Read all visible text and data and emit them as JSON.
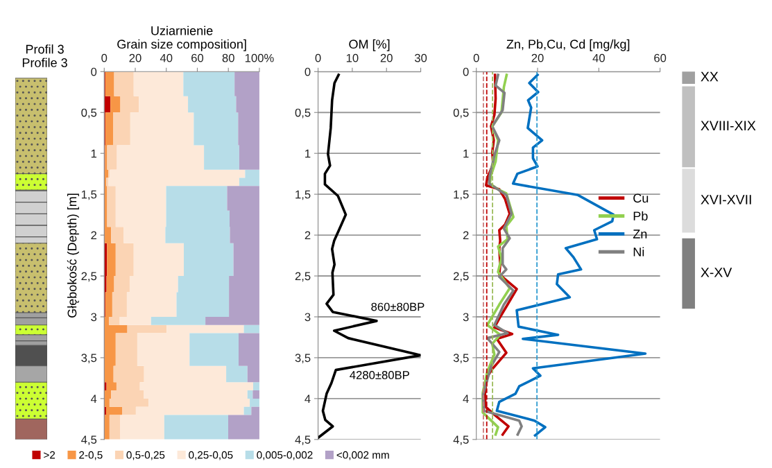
{
  "chart_data": [
    {
      "type": "area",
      "orientation": "horizontal",
      "stacked": true,
      "title": "Uziarnienie\nGrain size composition]",
      "ylabel": "Głębokość (Depth) [m]",
      "annotations": [
        "Profil 3\nProfile 3"
      ],
      "x": [
        0,
        0.3,
        0.3,
        0.5,
        0.5,
        0.9,
        0.9,
        1.2,
        1.2,
        1.3,
        1.3,
        1.4,
        1.4,
        1.7,
        1.7,
        1.9,
        1.9,
        2.1,
        2.1,
        2.5,
        2.5,
        2.7,
        2.7,
        3.0,
        3.0,
        3.1,
        3.1,
        3.2,
        3.2,
        3.6,
        3.6,
        3.8,
        3.8,
        3.9,
        3.9,
        4.0,
        4.0,
        4.1,
        4.1,
        4.2,
        4.2,
        4.5
      ],
      "series": [
        {
          "name": ">2",
          "color": "#c00000",
          "values": [
            0.7,
            0.7,
            4,
            4,
            0.7,
            0.7,
            0.5,
            0.5,
            0.3,
            0.3,
            0.3,
            0.3,
            0.3,
            0.3,
            0.3,
            0.3,
            0.3,
            0.3,
            1.8,
            1.8,
            1.5,
            1.5,
            0.7,
            0.7,
            0.3,
            0.3,
            0.3,
            0.3,
            0.3,
            0.3,
            0.3,
            0.3,
            1.5,
            1.5,
            0.3,
            0.3,
            0.3,
            0.3,
            1.2,
            1.2,
            0.3,
            0.3
          ]
        },
        {
          "name": "2-0,5",
          "color": "#f79646",
          "values": [
            5.7,
            5.7,
            6.4,
            6.4,
            5,
            5,
            1.4,
            1.4,
            2.4,
            2.4,
            1,
            1,
            1.6,
            1.6,
            1.6,
            1.6,
            4.2,
            4.2,
            5.6,
            5.6,
            4.9,
            4.9,
            4.5,
            4.5,
            2.7,
            2.7,
            14.6,
            14.6,
            7.1,
            7.1,
            5.7,
            5.7,
            6.4,
            6.4,
            4.2,
            4.2,
            3.1,
            3.1,
            10.3,
            10.3,
            3.1,
            3.1
          ]
        },
        {
          "name": "0,5-0,25",
          "color": "#fbd4b4",
          "values": [
            12.6,
            12.6,
            11.9,
            11.9,
            11.1,
            11.1,
            6.3,
            6.3,
            1,
            1,
            1.5,
            1.5,
            5.5,
            5.5,
            5.5,
            5.5,
            8.1,
            8.1,
            11.6,
            11.6,
            10,
            10,
            9.4,
            9.4,
            7,
            7,
            25.3,
            25.3,
            13.9,
            13.9,
            19.7,
            19.7,
            15.1,
            15.1,
            21.1,
            21.1,
            25.2,
            25.2,
            8.9,
            8.9,
            7,
            7
          ]
        },
        {
          "name": "0,25-0,05",
          "color": "#fde9d9",
          "values": [
            32,
            32,
            31.7,
            31.7,
            40.9,
            40.9,
            56.1,
            56.1,
            87.1,
            87.1,
            84.2,
            84.2,
            32.5,
            32.5,
            32.5,
            32.5,
            26.8,
            26.8,
            32.3,
            32.3,
            31.2,
            31.2,
            32,
            32,
            20.2,
            20.2,
            49.8,
            49.8,
            33.7,
            33.7,
            52.9,
            52.9,
            73,
            73,
            66.7,
            66.7,
            65.2,
            65.2,
            69.6,
            69.6,
            28.3,
            28.3
          ]
        },
        {
          "name": "0,005-0,002",
          "color": "#b7dde8",
          "values": [
            33,
            33,
            31,
            31,
            28.6,
            28.6,
            22.7,
            22.7,
            9.2,
            9.2,
            13,
            13,
            39.3,
            39.3,
            40.9,
            40.9,
            41.6,
            41.6,
            32,
            32,
            32.8,
            32.8,
            33.8,
            33.8,
            35,
            35,
            10,
            10,
            31.6,
            31.6,
            13.7,
            13.7,
            4,
            4,
            3.4,
            3.4,
            6.2,
            6.2,
            4.8,
            4.8,
            41.2,
            41.2
          ]
        },
        {
          "name": "<0,002 mm",
          "color": "#b2a1c7",
          "values": [
            16,
            16,
            15,
            15,
            13.7,
            13.7,
            13,
            13,
            0,
            0,
            0,
            0,
            20.8,
            20.8,
            19.2,
            19.2,
            19,
            19,
            16.7,
            16.7,
            19.6,
            19.6,
            19.6,
            19.6,
            34.8,
            34.8,
            0,
            0,
            13.4,
            13.4,
            7.7,
            7.7,
            0,
            0,
            4.3,
            4.3,
            0,
            0,
            5.2,
            5.2,
            20.1,
            20.1
          ]
        }
      ],
      "xlim": [
        0,
        100
      ],
      "xticks": [
        0,
        20,
        40,
        60,
        80,
        {
          "value": 100,
          "label": "100%"
        }
      ],
      "ylim": [
        4.5,
        0
      ],
      "yticks": [
        0,
        {
          "value": 0.5,
          "label": "0,5"
        },
        1,
        {
          "value": 1.5,
          "label": "1,5"
        },
        2,
        {
          "value": 2.5,
          "label": "2,5"
        },
        3,
        {
          "value": 3.5,
          "label": "3,5"
        },
        4,
        {
          "value": 4.5,
          "label": "4,5"
        }
      ],
      "legend": "bottom"
    },
    {
      "type": "line",
      "title": "OM [%]",
      "series": [
        {
          "color": "#000000",
          "x": [
            6.0,
            4.8,
            4.1,
            3.7,
            2.9,
            3.5,
            2.0,
            2.0,
            5.8,
            8.1,
            6.4,
            4.7,
            4.1,
            4.8,
            4.2,
            4.5,
            2.5,
            4.3,
            17.1,
            4.7,
            8.8,
            30,
            5.2,
            3.9,
            2.5,
            1.4,
            2.1,
            4.3,
            0
          ],
          "values": [
            0.04,
            0.14,
            0.35,
            0.69,
            1.01,
            1.15,
            1.25,
            1.38,
            1.52,
            1.75,
            1.91,
            2.07,
            2.17,
            2.36,
            2.46,
            2.73,
            2.84,
            2.94,
            3.05,
            3.17,
            3.26,
            3.47,
            3.65,
            3.81,
            3.94,
            4.15,
            4.26,
            4.34,
            4.48
          ]
        }
      ],
      "annotations": [
        {
          "text": "860±80BP",
          "x": 17.1,
          "y": 3.05
        },
        {
          "text": "4280±80BP",
          "x": 30,
          "y": 3.47
        }
      ],
      "xlim": [
        0,
        30
      ],
      "xticks": [
        0,
        10,
        20,
        30
      ],
      "ylim": [
        4.5,
        0
      ],
      "yticks": [
        0,
        {
          "value": 0.5,
          "label": "0,5"
        },
        1,
        {
          "value": 1.5,
          "label": "1,5"
        },
        2,
        {
          "value": 2.5,
          "label": "2,5"
        },
        3,
        {
          "value": 3.5,
          "label": "3,5"
        },
        4,
        {
          "value": 4.5,
          "label": "4,5"
        }
      ],
      "grid": "y"
    },
    {
      "type": "line",
      "title": "Zn, Pb,Cu, Cd [mg/kg]",
      "series": [
        {
          "name": "Cu",
          "color": "#c00000",
          "x": [
            6.1,
            6.3,
            5.9,
            4.8,
            5.7,
            5.2,
            5.5,
            3.6,
            3.2,
            7.5,
            9.4,
            10.9,
            9.4,
            7.5,
            7.8,
            7.5,
            7.8,
            7.5,
            13.2,
            10.2,
            7.5,
            5.9,
            11.7,
            6.7,
            9.8,
            5.2,
            3.6,
            2.8,
            3,
            6.3,
            10.5,
            8.6
          ],
          "values": [
            0.04,
            0.33,
            0.53,
            0.67,
            0.84,
            0.99,
            1.13,
            1.3,
            1.39,
            1.44,
            1.56,
            1.74,
            1.87,
            1.94,
            2.07,
            2.16,
            2.36,
            2.48,
            2.66,
            2.85,
            3.02,
            3.13,
            3.21,
            3.27,
            3.44,
            3.64,
            3.73,
            3.93,
            4.1,
            4.21,
            4.34,
            4.44
          ]
        },
        {
          "name": "Pb",
          "color": "#92d050",
          "x": [
            9.9,
            9,
            8.2,
            5.2,
            7.1,
            6.3,
            4.8,
            4.4,
            7.1,
            9.8,
            12.1,
            9.8,
            10.2,
            7.1,
            8.2,
            7.1,
            10.9,
            7.5,
            3.6,
            7.8,
            5.2,
            5.9,
            3.6,
            2.1,
            2.1,
            7.1,
            6.3
          ],
          "values": [
            0.04,
            0.19,
            0.5,
            0.67,
            0.84,
            1.1,
            1.27,
            1.37,
            1.44,
            1.49,
            1.78,
            1.89,
            2.05,
            2.14,
            2.28,
            2.45,
            2.65,
            2.85,
            3.1,
            3.22,
            3.33,
            3.46,
            3.67,
            3.93,
            4.17,
            4.35,
            4.44
          ]
        },
        {
          "name": "Zn",
          "color": "#0070c0",
          "x": [
            20,
            17.3,
            20.2,
            16.9,
            17.9,
            16.8,
            21.5,
            18.5,
            18.5,
            20,
            13.4,
            12,
            33.2,
            44.8,
            44.4,
            38.5,
            39.4,
            29.2,
            31.7,
            34.2,
            26.7,
            26.3,
            30.5,
            13.2,
            13.8,
            26.7,
            15.2,
            55.2,
            18.5,
            20.9,
            14,
            12.8,
            7.5,
            6.7,
            19,
            22.5,
            19.2
          ],
          "values": [
            0.04,
            0.14,
            0.25,
            0.35,
            0.44,
            0.69,
            0.84,
            0.93,
            1.06,
            1.16,
            1.25,
            1.37,
            1.51,
            1.75,
            1.83,
            1.94,
            2.05,
            2.16,
            2.27,
            2.42,
            2.48,
            2.6,
            2.76,
            2.92,
            3.12,
            3.22,
            3.27,
            3.45,
            3.63,
            3.72,
            3.85,
            3.94,
            4.04,
            4.15,
            4.27,
            4.35,
            4.45
          ]
        },
        {
          "name": "Ni",
          "color": "#808080",
          "x": [
            7.1,
            6.3,
            9.2,
            8.6,
            5.2,
            7.5,
            6,
            4.4,
            4.2,
            9.8,
            11.5,
            9,
            10.9,
            8.6,
            8.6,
            9.8,
            7.5,
            12.1,
            9,
            5.9,
            10.2,
            3.6,
            7.5,
            4.8,
            2.2,
            2.5,
            14,
            14.8,
            13.5
          ],
          "values": [
            0.04,
            0.17,
            0.26,
            0.47,
            0.67,
            0.84,
            1.01,
            1.27,
            1.37,
            1.51,
            1.74,
            1.92,
            2.04,
            2.16,
            2.36,
            2.42,
            2.51,
            2.68,
            2.85,
            3.1,
            3.2,
            3.26,
            3.43,
            3.61,
            3.95,
            4.15,
            4.27,
            4.34,
            4.44
          ]
        }
      ],
      "ref_lines": [
        {
          "axis": "x",
          "value": 2.3,
          "color": "#c87878",
          "line_style": "dashed"
        },
        {
          "axis": "x",
          "value": 3.4,
          "color": "#c00000",
          "line_style": "dashed"
        },
        {
          "axis": "x",
          "value": 5.3,
          "color": "#9bbb59",
          "line_style": "dashed"
        },
        {
          "axis": "x",
          "value": 19.8,
          "color": "#2e9bd0",
          "line_style": "dashed"
        }
      ],
      "annotations": [
        "XX",
        "XVIII-XIX",
        "XVI-XVII",
        "X-XV"
      ],
      "xlim": [
        0,
        60
      ],
      "xticks": [
        0,
        20,
        40,
        60
      ],
      "ylim": [
        4.5,
        0
      ],
      "yticks": [
        0,
        {
          "value": 0.5,
          "label": "0,5"
        },
        1,
        {
          "value": 1.5,
          "label": "1,5"
        },
        2,
        {
          "value": 2.5,
          "label": "2,5"
        },
        3,
        {
          "value": 3.5,
          "label": "3,5"
        },
        4,
        {
          "value": 4.5,
          "label": "4,5"
        }
      ],
      "grid": "y",
      "legend": "right"
    }
  ]
}
